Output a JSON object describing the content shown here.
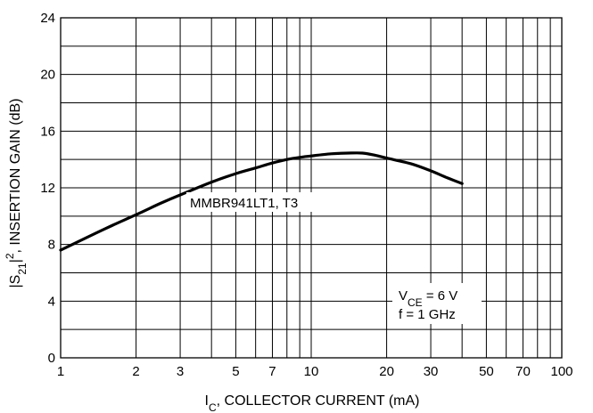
{
  "chart_data": {
    "type": "line",
    "title": "",
    "xscale": "log",
    "xlim": [
      1,
      100
    ],
    "ylim": [
      0,
      24
    ],
    "grid": true,
    "xlabel": {
      "parts": [
        {
          "text": "I",
          "sub": false
        },
        {
          "text": "C",
          "sub": true
        },
        {
          "text": ", COLLECTOR CURRENT (mA)",
          "sub": false
        }
      ]
    },
    "ylabel": {
      "parts": [
        {
          "text": "|S",
          "style": "normal"
        },
        {
          "text": "21",
          "style": "sub"
        },
        {
          "text": "|",
          "style": "normal"
        },
        {
          "text": "2",
          "style": "sup"
        },
        {
          "text": ", INSERTION GAIN (dB)",
          "style": "normal"
        }
      ]
    },
    "x_tick_labels": [
      {
        "value": 1,
        "label": "1"
      },
      {
        "value": 2,
        "label": "2"
      },
      {
        "value": 3,
        "label": "3"
      },
      {
        "value": 5,
        "label": "5"
      },
      {
        "value": 7,
        "label": "7"
      },
      {
        "value": 10,
        "label": "10"
      },
      {
        "value": 20,
        "label": "20"
      },
      {
        "value": 30,
        "label": "30"
      },
      {
        "value": 50,
        "label": "50"
      },
      {
        "value": 70,
        "label": "70"
      },
      {
        "value": 100,
        "label": "100"
      }
    ],
    "x_gridlines": [
      1,
      2,
      3,
      4,
      5,
      6,
      7,
      8,
      9,
      10,
      20,
      30,
      40,
      50,
      60,
      70,
      80,
      90,
      100
    ],
    "y_ticks": [
      {
        "value": 0,
        "label": "0"
      },
      {
        "value": 4,
        "label": "4"
      },
      {
        "value": 8,
        "label": "8"
      },
      {
        "value": 12,
        "label": "12"
      },
      {
        "value": 16,
        "label": "16"
      },
      {
        "value": 20,
        "label": "20"
      },
      {
        "value": 24,
        "label": "24"
      }
    ],
    "y_gridlines": [
      0,
      2,
      4,
      6,
      8,
      10,
      12,
      14,
      16,
      18,
      20,
      22,
      24
    ],
    "series": [
      {
        "label": "MMBR941LT1, T3",
        "color": "#000000",
        "x": [
          1,
          1.5,
          2,
          2.5,
          3,
          4,
          5,
          6,
          7,
          8,
          9,
          10,
          12,
          14,
          16,
          18,
          20,
          25,
          30,
          35,
          40
        ],
        "y": [
          7.6,
          9.1,
          10.1,
          10.9,
          11.5,
          12.4,
          13.0,
          13.4,
          13.75,
          14.0,
          14.15,
          14.25,
          14.4,
          14.45,
          14.45,
          14.3,
          14.1,
          13.7,
          13.2,
          12.7,
          12.3
        ]
      }
    ],
    "annotations": {
      "conditions": [
        {
          "parts": [
            {
              "text": "V",
              "sub": false
            },
            {
              "text": "CE",
              "sub": true
            },
            {
              "text": " = 6 V",
              "sub": false
            }
          ]
        },
        {
          "parts": [
            {
              "text": "f = 1 GHz",
              "sub": false
            }
          ]
        }
      ]
    }
  }
}
